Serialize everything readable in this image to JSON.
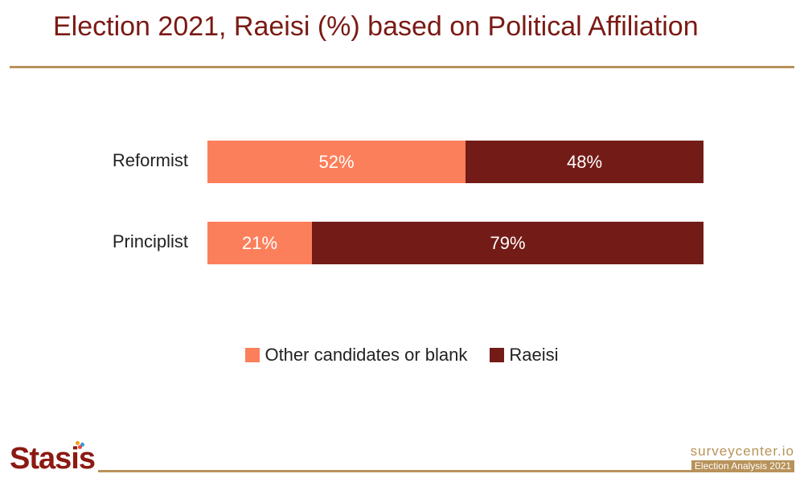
{
  "title": "Election 2021, Raeisi (%) based on Political Affiliation",
  "colors": {
    "other": "#fc7f5b",
    "raeisi": "#731c17",
    "accent": "#b8925a",
    "title": "#7a1a14"
  },
  "chart_data": {
    "type": "bar",
    "orientation": "horizontal",
    "stacked": true,
    "categories": [
      "Reformist",
      "Principlist"
    ],
    "series": [
      {
        "name": "Other candidates or blank",
        "values": [
          52,
          21
        ],
        "labels": [
          "52%",
          "21%"
        ]
      },
      {
        "name": "Raeisi",
        "values": [
          48,
          79
        ],
        "labels": [
          "48%",
          "79%"
        ]
      }
    ],
    "xlim": [
      0,
      100
    ],
    "grid": false,
    "legend_position": "bottom"
  },
  "footer": {
    "logo": "Stasis",
    "site": "surveycenter.io",
    "tag": "Election Analysis 2021"
  }
}
